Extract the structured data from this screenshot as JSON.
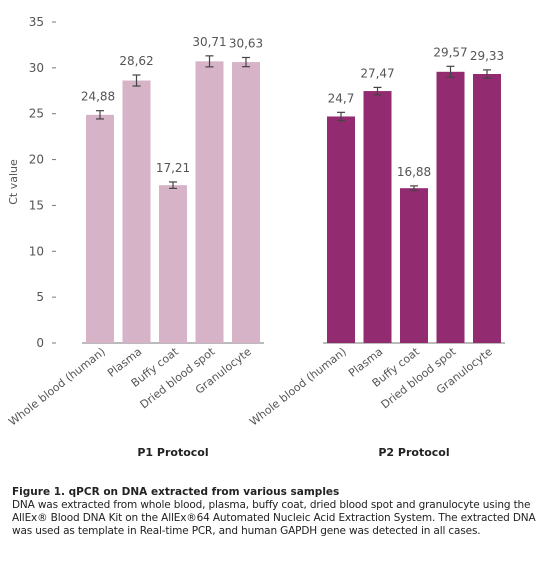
{
  "chart_data": {
    "type": "bar",
    "ylabel": "Ct value",
    "ylim": [
      0,
      35
    ],
    "yticks": [
      0,
      5,
      10,
      15,
      20,
      25,
      30,
      35
    ],
    "grid": false,
    "groups": [
      {
        "name": "P1 Protocol",
        "color": "#d6b3c7",
        "categories": [
          "Whole blood (human)",
          "Plasma",
          "Buffy coat",
          "Dried blood spot",
          "Granulocyte"
        ],
        "values": [
          24.88,
          28.62,
          17.21,
          30.71,
          30.63
        ],
        "labels": [
          "24,88",
          "28,62",
          "17,21",
          "30,71",
          "30,63"
        ],
        "errors": [
          0.45,
          0.6,
          0.35,
          0.6,
          0.5
        ]
      },
      {
        "name": "P2 Protocol",
        "color": "#922b6f",
        "categories": [
          "Whole blood (human)",
          "Plasma",
          "Buffy coat",
          "Dried blood spot",
          "Granulocyte"
        ],
        "values": [
          24.7,
          27.47,
          16.88,
          29.57,
          29.33
        ],
        "labels": [
          "24,7",
          "27,47",
          "16,88",
          "29,57",
          "29,33"
        ],
        "errors": [
          0.45,
          0.4,
          0.25,
          0.6,
          0.45
        ]
      }
    ]
  },
  "caption": {
    "title": "Figure 1. qPCR on DNA extracted from various samples",
    "body": "DNA was extracted from whole blood, plasma, buffy coat, dried blood spot and granulocyte using the AllEx® Blood DNA Kit on the AllEx®64 Automated Nucleic Acid Extraction System. The extracted DNA was used as template in Real-time PCR, and human GAPDH gene was detected in all cases."
  }
}
